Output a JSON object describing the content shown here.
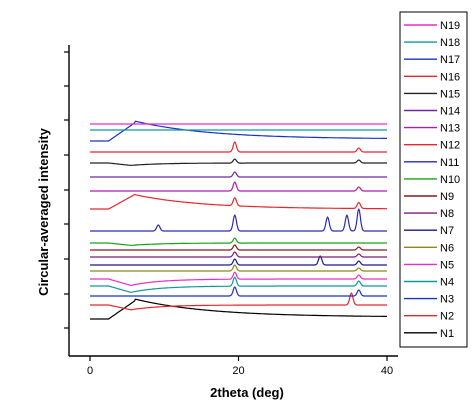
{
  "chart_data": {
    "type": "line",
    "title": "",
    "xlabel": "2theta (deg)",
    "ylabel": "Circular-averaged intensity",
    "xlim": [
      -2,
      42
    ],
    "xticks": [
      "0",
      "20",
      "40"
    ],
    "legend_position": "right",
    "grid": false,
    "series": [
      {
        "name": "N1",
        "color": "#000000",
        "offset": 0,
        "bg": "rise-decay",
        "amp": 1.0,
        "peaks": []
      },
      {
        "name": "N2",
        "color": "#e8262e",
        "offset": 14,
        "bg": "dip",
        "amp": 0.6,
        "peaks": [
          [
            35.2,
            12
          ]
        ]
      },
      {
        "name": "N3",
        "color": "#1a33c4",
        "offset": 23,
        "bg": "flat",
        "amp": 0.0,
        "peaks": [
          [
            19.5,
            9
          ],
          [
            36.2,
            6
          ]
        ]
      },
      {
        "name": "N4",
        "color": "#0f9a9a",
        "offset": 33,
        "bg": "dip",
        "amp": 0.8,
        "peaks": [
          [
            19.5,
            9
          ],
          [
            36.2,
            5
          ]
        ]
      },
      {
        "name": "N5",
        "color": "#e82ec9",
        "offset": 40,
        "bg": "dip",
        "amp": 0.8,
        "peaks": [
          [
            19.5,
            7
          ],
          [
            36.2,
            4
          ]
        ]
      },
      {
        "name": "N6",
        "color": "#8a8a18",
        "offset": 48,
        "bg": "flat",
        "amp": 0.0,
        "peaks": [
          [
            19.5,
            6
          ],
          [
            36.2,
            3
          ]
        ]
      },
      {
        "name": "N7",
        "color": "#1a1a8a",
        "offset": 54,
        "bg": "flat",
        "amp": 0.0,
        "peaks": [
          [
            19.5,
            6
          ],
          [
            31.0,
            9
          ],
          [
            36.2,
            4
          ]
        ]
      },
      {
        "name": "N8",
        "color": "#7a1a7a",
        "offset": 62,
        "bg": "flat",
        "amp": 0.0,
        "peaks": [
          [
            19.5,
            5
          ],
          [
            36.2,
            3
          ]
        ]
      },
      {
        "name": "N9",
        "color": "#8a1a1a",
        "offset": 69,
        "bg": "flat",
        "amp": 0.0,
        "peaks": [
          [
            19.5,
            5
          ],
          [
            36.2,
            3
          ]
        ]
      },
      {
        "name": "N10",
        "color": "#17a317",
        "offset": 76,
        "bg": "dip",
        "amp": 0.3,
        "peaks": [
          [
            19.5,
            5
          ]
        ]
      },
      {
        "name": "N11",
        "color": "#2a2ab8",
        "offset": 88,
        "bg": "flat",
        "amp": 0.0,
        "peaks": [
          [
            9.2,
            6
          ],
          [
            19.5,
            16
          ],
          [
            32.0,
            14
          ],
          [
            34.6,
            16
          ],
          [
            36.2,
            22
          ]
        ]
      },
      {
        "name": "N12",
        "color": "#e8262e",
        "offset": 110,
        "bg": "hump",
        "amp": 1.2,
        "peaks": [
          [
            19.5,
            8
          ],
          [
            36.2,
            6
          ]
        ]
      },
      {
        "name": "N13",
        "color": "#b21ab2",
        "offset": 128,
        "bg": "flat",
        "amp": 0.0,
        "peaks": [
          [
            19.5,
            9
          ],
          [
            36.2,
            4
          ]
        ]
      },
      {
        "name": "N14",
        "color": "#6a2aa8",
        "offset": 142,
        "bg": "flat",
        "amp": 0.0,
        "peaks": [
          [
            19.5,
            5
          ]
        ]
      },
      {
        "name": "N15",
        "color": "#222222",
        "offset": 156,
        "bg": "dip",
        "amp": 0.3,
        "peaks": [
          [
            19.5,
            4
          ],
          [
            36.2,
            3
          ]
        ]
      },
      {
        "name": "N16",
        "color": "#e8262e",
        "offset": 167,
        "bg": "flat",
        "amp": 0.0,
        "peaks": [
          [
            19.5,
            10
          ],
          [
            36.2,
            4
          ]
        ]
      },
      {
        "name": "N17",
        "color": "#1a33c4",
        "offset": 178,
        "bg": "rise-decay",
        "amp": 1.0,
        "peaks": []
      },
      {
        "name": "N18",
        "color": "#0f9a9a",
        "offset": 189,
        "bg": "flat",
        "amp": 0.0,
        "peaks": []
      },
      {
        "name": "N19",
        "color": "#e82ec9",
        "offset": 195,
        "bg": "flat",
        "amp": 0.0,
        "peaks": []
      }
    ]
  }
}
